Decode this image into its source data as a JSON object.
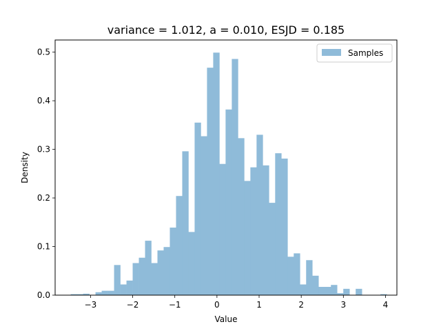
{
  "chart_data": {
    "type": "bar",
    "subtype": "histogram",
    "title": "variance = 1.012, a = 0.010, ESJD = 0.185",
    "xlabel": "Value",
    "ylabel": "Density",
    "xlim": [
      -3.84,
      4.27
    ],
    "ylim": [
      0,
      0.525
    ],
    "x_ticks": [
      -3,
      -2,
      -1,
      0,
      1,
      2,
      3,
      4
    ],
    "x_tick_labels": [
      "−3",
      "−2",
      "−1",
      "0",
      "1",
      "2",
      "3",
      "4"
    ],
    "y_ticks": [
      0.0,
      0.1,
      0.2,
      0.3,
      0.4,
      0.5
    ],
    "y_tick_labels": [
      "0.0",
      "0.1",
      "0.2",
      "0.3",
      "0.4",
      "0.5"
    ],
    "grid": false,
    "legend_position": "top-right",
    "series": [
      {
        "name": "Samples",
        "color": "#8fbbd9",
        "bin_start": -3.47,
        "bin_width": 0.147,
        "values": [
          0.002,
          0.002,
          0.003,
          0.0,
          0.006,
          0.009,
          0.009,
          0.062,
          0.022,
          0.03,
          0.066,
          0.077,
          0.112,
          0.066,
          0.092,
          0.099,
          0.139,
          0.204,
          0.296,
          0.13,
          0.355,
          0.327,
          0.468,
          0.499,
          0.27,
          0.382,
          0.486,
          0.323,
          0.235,
          0.263,
          0.33,
          0.267,
          0.19,
          0.292,
          0.281,
          0.079,
          0.086,
          0.022,
          0.072,
          0.04,
          0.017,
          0.017,
          0.021,
          0.004,
          0.013,
          0.0,
          0.013,
          0.0,
          0.0,
          0.0,
          0.002,
          0.0
        ]
      }
    ]
  }
}
